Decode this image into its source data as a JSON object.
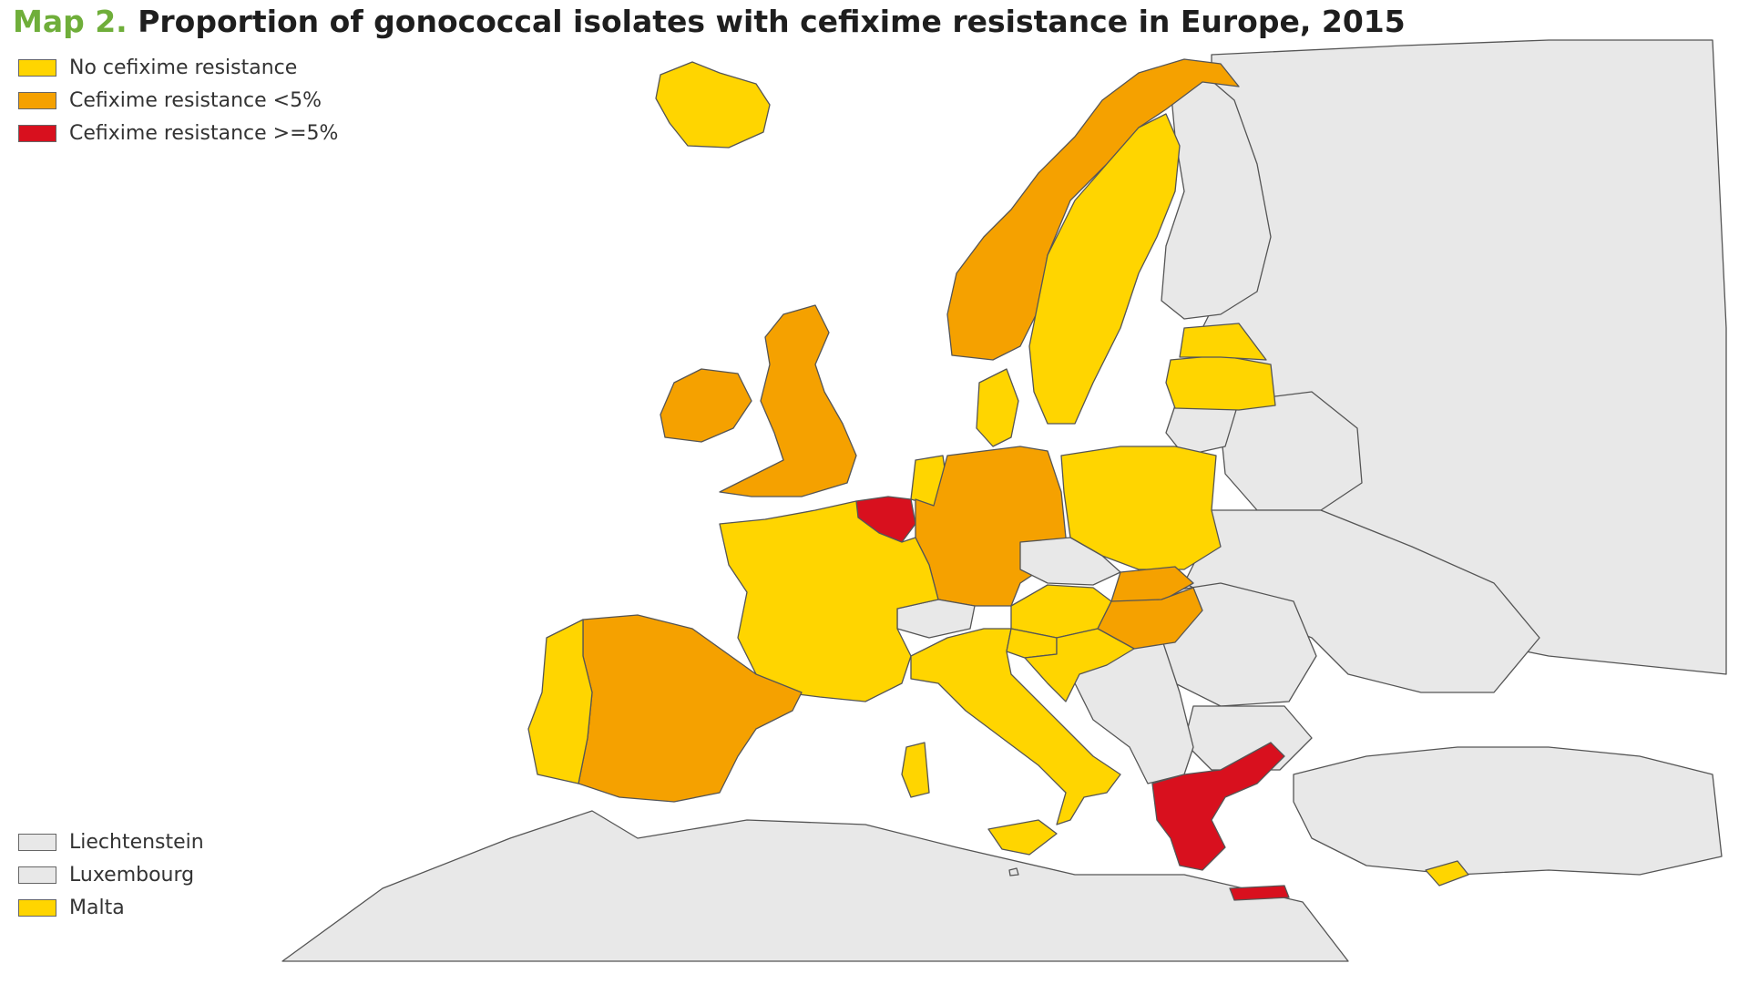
{
  "title": {
    "label": "Map 2.",
    "text": "Proportion of gonococcal isolates with cefixime resistance in Europe, 2015"
  },
  "legend": [
    {
      "label": "No cefixime resistance",
      "color": "#ffd500"
    },
    {
      "label": "Cefixime resistance <5%",
      "color": "#f5a100"
    },
    {
      "label": "Cefixime resistance >=5%",
      "color": "#d8101e"
    }
  ],
  "small_countries": [
    {
      "label": "Liechtenstein",
      "color": "#e8e8e8"
    },
    {
      "label": "Luxembourg",
      "color": "#e8e8e8"
    },
    {
      "label": "Malta",
      "color": "#ffd500"
    }
  ],
  "colors": {
    "none": "#ffd500",
    "low": "#f5a100",
    "high": "#d8101e",
    "nodata": "#e8e8e8",
    "sea": "#ffffff"
  },
  "regions": [
    {
      "name": "Iceland",
      "category": "none"
    },
    {
      "name": "Ireland",
      "category": "low"
    },
    {
      "name": "United Kingdom",
      "category": "low"
    },
    {
      "name": "Norway",
      "category": "low"
    },
    {
      "name": "Sweden",
      "category": "none"
    },
    {
      "name": "Finland",
      "category": "nodata"
    },
    {
      "name": "Denmark",
      "category": "none"
    },
    {
      "name": "Estonia",
      "category": "none"
    },
    {
      "name": "Latvia",
      "category": "none"
    },
    {
      "name": "Lithuania",
      "category": "nodata"
    },
    {
      "name": "Netherlands",
      "category": "none"
    },
    {
      "name": "Belgium",
      "category": "high"
    },
    {
      "name": "Germany",
      "category": "low"
    },
    {
      "name": "Poland",
      "category": "none"
    },
    {
      "name": "Czech Republic",
      "category": "nodata"
    },
    {
      "name": "Slovakia",
      "category": "low"
    },
    {
      "name": "Austria",
      "category": "none"
    },
    {
      "name": "Hungary",
      "category": "low"
    },
    {
      "name": "Switzerland",
      "category": "nodata"
    },
    {
      "name": "France",
      "category": "none"
    },
    {
      "name": "Spain",
      "category": "low"
    },
    {
      "name": "Portugal",
      "category": "none"
    },
    {
      "name": "Italy",
      "category": "none"
    },
    {
      "name": "Slovenia",
      "category": "none"
    },
    {
      "name": "Croatia",
      "category": "none"
    },
    {
      "name": "Greece",
      "category": "high"
    },
    {
      "name": "Cyprus",
      "category": "none"
    },
    {
      "name": "Romania",
      "category": "nodata"
    },
    {
      "name": "Bulgaria",
      "category": "nodata"
    },
    {
      "name": "Russia",
      "category": "nodata"
    },
    {
      "name": "Belarus",
      "category": "nodata"
    },
    {
      "name": "Ukraine",
      "category": "nodata"
    },
    {
      "name": "Turkey",
      "category": "nodata"
    },
    {
      "name": "Balkans",
      "category": "nodata"
    },
    {
      "name": "North Africa",
      "category": "nodata"
    }
  ]
}
